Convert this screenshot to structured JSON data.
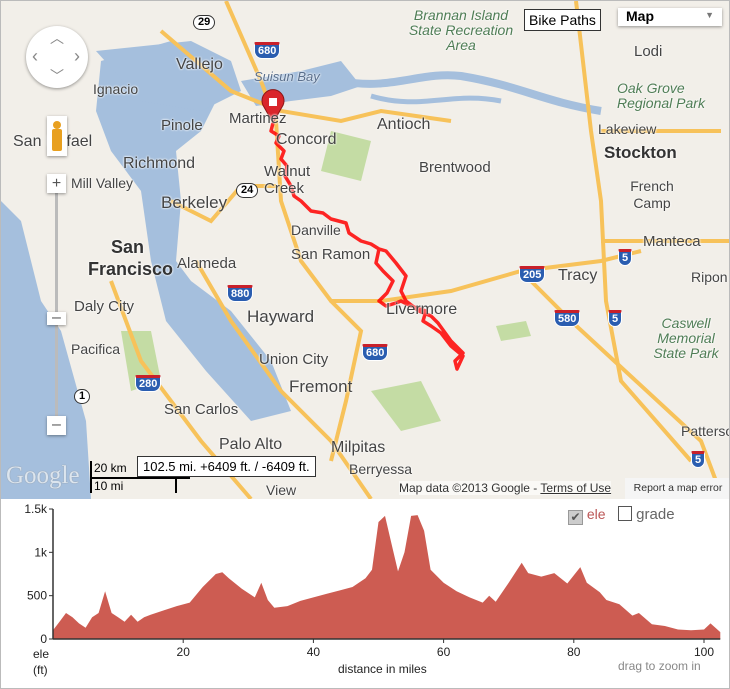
{
  "map": {
    "bike_paths_label": "Bike Paths",
    "map_type": "Map",
    "cities": {
      "vallejo": "Vallejo",
      "ignacio": "Ignacio",
      "san_rafael": "San Rafael",
      "mill_valley": "Mill Valley",
      "pinole": "Pinole",
      "martinez": "Martinez",
      "concord": "Concord",
      "richmond": "Richmond",
      "walnut_creek": "Walnut Creek",
      "berkeley": "Berkeley",
      "antioch": "Antioch",
      "brentwood": "Brentwood",
      "danville": "Danville",
      "san_ramon": "San Ramon",
      "san_francisco_1": "San",
      "san_francisco_2": "Francisco",
      "alameda": "Alameda",
      "daly_city": "Daly City",
      "hayward": "Hayward",
      "livermore": "Livermore",
      "pacifica": "Pacifica",
      "union_city": "Union City",
      "fremont": "Fremont",
      "san_carlos": "San Carlos",
      "palo_alto": "Palo Alto",
      "milpitas": "Milpitas",
      "berryessa": "Berryessa",
      "mountain_view": "View",
      "lodi": "Lodi",
      "lakeview": "Lakeview",
      "stockton": "Stockton",
      "french_camp": "French Camp",
      "manteca": "Manteca",
      "tracy": "Tracy",
      "ripon": "Ripon",
      "patterson": "Patterson"
    },
    "parks": {
      "brannan": "Brannan Island State Recreation Area",
      "oak_grove": "Oak Grove Regional Park",
      "caswell": "Caswell Memorial State Park"
    },
    "water": {
      "suisun_bay": "Suisun Bay"
    },
    "highways": [
      "29",
      "680",
      "24",
      "880",
      "680",
      "205",
      "580",
      "5",
      "5",
      "5",
      "280",
      "1",
      "5"
    ],
    "scale": {
      "km": "20 km",
      "mi": "10 mi"
    },
    "route_summary": "102.5 mi. +6409 ft. / -6409 ft.",
    "google_logo": "Google",
    "attribution": "Map data ©2013 Google - ",
    "terms": "Terms of Use",
    "report": "Report a map error",
    "colors": {
      "water": "#a5bfdd",
      "land": "#f2efe9",
      "park": "#c4dca4",
      "road": "#f7c25a",
      "route": "#ff0000"
    }
  },
  "chart_data": {
    "type": "area",
    "xlabel": "distance in miles",
    "ylabel": "ele (ft)",
    "ylabel_line1": "ele",
    "ylabel_line2": "(ft)",
    "xlim": [
      0,
      102.5
    ],
    "ylim": [
      0,
      1500
    ],
    "x_ticks": [
      "20",
      "40",
      "60",
      "80",
      "100"
    ],
    "y_ticks": [
      "0",
      "500",
      "1k",
      "1.5k"
    ],
    "legend": {
      "ele": "ele",
      "grade": "grade",
      "ele_checked": true,
      "grade_checked": false
    },
    "hint": "drag to zoom in",
    "color": "#cd5c52",
    "x": [
      0,
      1,
      2,
      3,
      4,
      5,
      6,
      7,
      8,
      9,
      10,
      11,
      12,
      13,
      14,
      15,
      17,
      19,
      21,
      23,
      25,
      26,
      27,
      29,
      31,
      32,
      33,
      34,
      36,
      38,
      40,
      42,
      44,
      46,
      48,
      49,
      50,
      51,
      52,
      53,
      54,
      55,
      56,
      57,
      58,
      60,
      62,
      64,
      66,
      67,
      68,
      70,
      72,
      73,
      75,
      77,
      79,
      81,
      82,
      84,
      85,
      87,
      89,
      90,
      92,
      94,
      96,
      98,
      100,
      101,
      102.5
    ],
    "y": [
      100,
      200,
      300,
      250,
      180,
      130,
      250,
      300,
      550,
      300,
      250,
      200,
      280,
      200,
      250,
      280,
      330,
      380,
      420,
      600,
      750,
      770,
      700,
      580,
      480,
      650,
      450,
      360,
      380,
      440,
      480,
      520,
      560,
      600,
      700,
      800,
      1350,
      1420,
      1100,
      780,
      1000,
      1420,
      1430,
      1250,
      800,
      650,
      550,
      480,
      420,
      500,
      430,
      650,
      880,
      760,
      720,
      760,
      640,
      830,
      650,
      540,
      450,
      400,
      270,
      300,
      170,
      150,
      110,
      100,
      110,
      180,
      80
    ]
  }
}
